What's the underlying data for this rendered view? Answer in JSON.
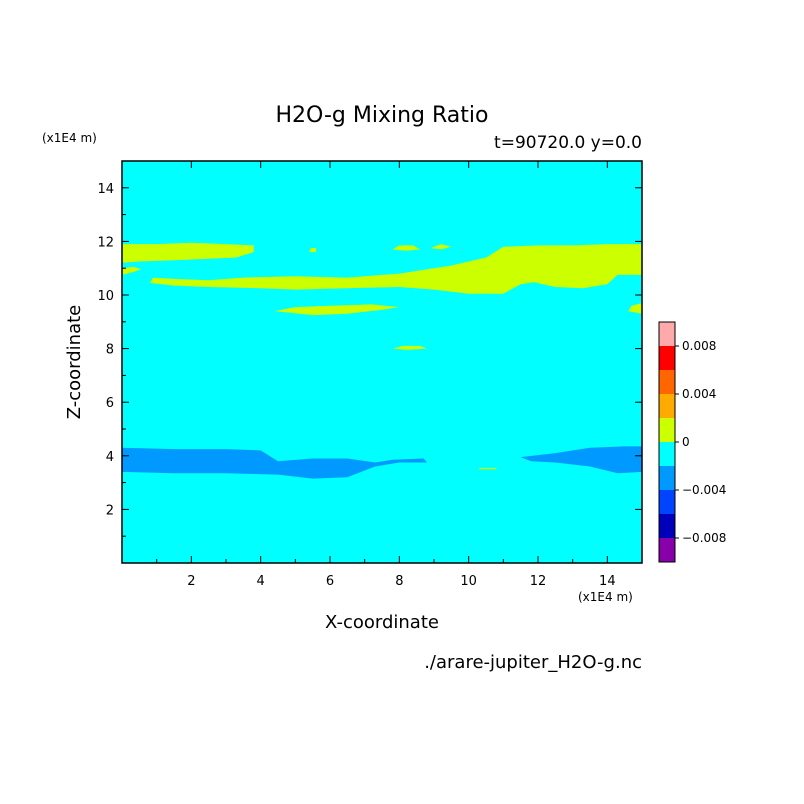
{
  "chart_data": {
    "type": "heatmap",
    "title": "H2O-g Mixing Ratio",
    "subtitle": "t=90720.0 y=0.0",
    "xlabel": "X-coordinate",
    "ylabel": "Z-coordinate",
    "x_unit": "(x1E4 m)",
    "y_unit": "(x1E4 m)",
    "xlim": [
      0,
      15
    ],
    "ylim": [
      0,
      15
    ],
    "x_ticks": [
      2,
      4,
      6,
      8,
      10,
      12,
      14
    ],
    "y_ticks": [
      2,
      4,
      6,
      8,
      10,
      12,
      14
    ],
    "background_level_color": "#00ffff",
    "filename": "./arare-jupiter_H2O-g.nc",
    "colorbar": {
      "levels": [
        -0.01,
        -0.008,
        -0.006,
        -0.004,
        -0.002,
        0,
        0.002,
        0.004,
        0.006,
        0.008,
        0.01
      ],
      "colors": [
        "#8800aa",
        "#0000bb",
        "#0044ff",
        "#0099ff",
        "#00ffff",
        "#ccff00",
        "#ffaa00",
        "#ff6600",
        "#ff0000",
        "#ffaaaa"
      ],
      "tick_values": [
        -0.008,
        -0.004,
        0,
        0.004,
        0.008
      ],
      "tick_labels": [
        "−0.008",
        "−0.004",
        "0",
        "0.004",
        "0.008"
      ]
    },
    "regions": [
      {
        "level": "0 to 0.002",
        "color": "#ccff00",
        "points": [
          [
            0,
            11.2
          ],
          [
            0.5,
            11.25
          ],
          [
            1.5,
            11.3
          ],
          [
            2.5,
            11.35
          ],
          [
            3.3,
            11.4
          ],
          [
            3.8,
            11.6
          ],
          [
            3.8,
            11.85
          ],
          [
            3.0,
            11.9
          ],
          [
            2.0,
            11.95
          ],
          [
            1.0,
            11.9
          ],
          [
            0,
            11.9
          ]
        ]
      },
      {
        "level": "0 to 0.002",
        "color": "#ccff00",
        "points": [
          [
            0,
            10.75
          ],
          [
            0.3,
            10.85
          ],
          [
            0.55,
            10.95
          ],
          [
            0.35,
            11.05
          ],
          [
            0,
            11.0
          ]
        ]
      },
      {
        "level": "0 to 0.002",
        "color": "#ccff00",
        "points": [
          [
            0.8,
            10.45
          ],
          [
            1.5,
            10.35
          ],
          [
            2.5,
            10.3
          ],
          [
            4.0,
            10.25
          ],
          [
            5.0,
            10.2
          ],
          [
            6.5,
            10.25
          ],
          [
            8.0,
            10.3
          ],
          [
            9.0,
            10.2
          ],
          [
            10.0,
            10.05
          ],
          [
            11.0,
            10.05
          ],
          [
            11.5,
            10.4
          ],
          [
            12.5,
            10.6
          ],
          [
            13.5,
            10.7
          ],
          [
            14.0,
            10.75
          ],
          [
            15.0,
            10.75
          ],
          [
            15.0,
            11.9
          ],
          [
            14.0,
            11.9
          ],
          [
            13.0,
            11.85
          ],
          [
            12.0,
            11.85
          ],
          [
            11.0,
            11.8
          ],
          [
            10.5,
            11.4
          ],
          [
            9.5,
            11.1
          ],
          [
            8.0,
            10.8
          ],
          [
            6.5,
            10.65
          ],
          [
            5.0,
            10.7
          ],
          [
            3.5,
            10.65
          ],
          [
            2.5,
            10.55
          ],
          [
            1.5,
            10.6
          ],
          [
            0.9,
            10.65
          ]
        ]
      },
      {
        "level": "0 to 0.002",
        "color": "#ccff00",
        "points": [
          [
            11.8,
            10.5
          ],
          [
            12.5,
            10.3
          ],
          [
            13.3,
            10.25
          ],
          [
            14.0,
            10.4
          ],
          [
            14.3,
            10.75
          ],
          [
            13.5,
            10.85
          ],
          [
            12.6,
            10.8
          ],
          [
            12.0,
            10.7
          ]
        ]
      },
      {
        "level": "0 to 0.002",
        "color": "#ccff00",
        "points": [
          [
            4.4,
            9.4
          ],
          [
            5.5,
            9.25
          ],
          [
            6.5,
            9.3
          ],
          [
            7.5,
            9.45
          ],
          [
            8.0,
            9.55
          ],
          [
            7.2,
            9.65
          ],
          [
            6.0,
            9.6
          ],
          [
            5.0,
            9.55
          ]
        ]
      },
      {
        "level": "0 to 0.002",
        "color": "#ccff00",
        "points": [
          [
            14.6,
            9.4
          ],
          [
            15.0,
            9.3
          ],
          [
            15.0,
            9.7
          ],
          [
            14.7,
            9.6
          ]
        ]
      },
      {
        "level": "0 to 0.002",
        "color": "#ccff00",
        "points": [
          [
            7.8,
            8.0
          ],
          [
            8.2,
            7.95
          ],
          [
            8.8,
            8.0
          ],
          [
            8.6,
            8.1
          ],
          [
            8.1,
            8.1
          ]
        ]
      },
      {
        "level": "0 to 0.002",
        "color": "#ccff00",
        "points": [
          [
            7.8,
            11.7
          ],
          [
            8.2,
            11.65
          ],
          [
            8.6,
            11.7
          ],
          [
            8.4,
            11.85
          ],
          [
            8.0,
            11.85
          ]
        ]
      },
      {
        "level": "0 to 0.002",
        "color": "#ccff00",
        "points": [
          [
            8.9,
            11.75
          ],
          [
            9.2,
            11.7
          ],
          [
            9.5,
            11.8
          ],
          [
            9.2,
            11.9
          ]
        ]
      },
      {
        "level": "0 to 0.002",
        "color": "#ccff00",
        "points": [
          [
            5.4,
            11.6
          ],
          [
            5.6,
            11.6
          ],
          [
            5.6,
            11.75
          ],
          [
            5.45,
            11.75
          ]
        ]
      },
      {
        "level": "-0.004 to -0.002",
        "color": "#0099ff",
        "points": [
          [
            0,
            3.4
          ],
          [
            1.5,
            3.35
          ],
          [
            3.0,
            3.35
          ],
          [
            4.5,
            3.3
          ],
          [
            5.5,
            3.15
          ],
          [
            6.5,
            3.2
          ],
          [
            7.3,
            3.6
          ],
          [
            8.0,
            3.75
          ],
          [
            8.8,
            3.75
          ],
          [
            8.7,
            3.9
          ],
          [
            7.8,
            3.85
          ],
          [
            7.3,
            3.75
          ],
          [
            6.5,
            3.9
          ],
          [
            5.5,
            3.9
          ],
          [
            4.5,
            3.8
          ],
          [
            4.0,
            4.2
          ],
          [
            3.0,
            4.25
          ],
          [
            1.5,
            4.25
          ],
          [
            0,
            4.3
          ]
        ]
      },
      {
        "level": "-0.004 to -0.002",
        "color": "#0099ff",
        "points": [
          [
            11.5,
            3.95
          ],
          [
            12.5,
            4.1
          ],
          [
            13.5,
            4.3
          ],
          [
            14.5,
            4.35
          ],
          [
            15.0,
            4.35
          ],
          [
            15.0,
            3.4
          ],
          [
            14.3,
            3.35
          ],
          [
            13.5,
            3.6
          ],
          [
            12.5,
            3.75
          ],
          [
            11.8,
            3.8
          ]
        ]
      },
      {
        "level": "0 to 0.002",
        "color": "#ccff00",
        "points": [
          [
            10.3,
            3.5
          ],
          [
            10.8,
            3.5
          ],
          [
            10.8,
            3.55
          ],
          [
            10.3,
            3.55
          ]
        ]
      }
    ]
  }
}
